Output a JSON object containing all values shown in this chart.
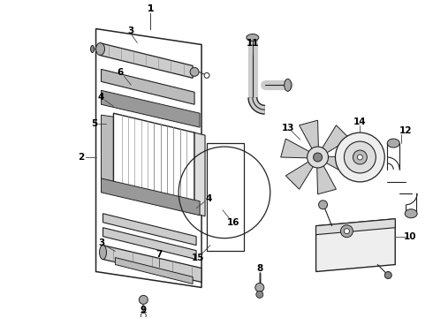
{
  "bg_color": "#ffffff",
  "line_color": "#222222",
  "label_color": "#000000",
  "fig_width": 4.9,
  "fig_height": 3.6,
  "dpi": 100
}
